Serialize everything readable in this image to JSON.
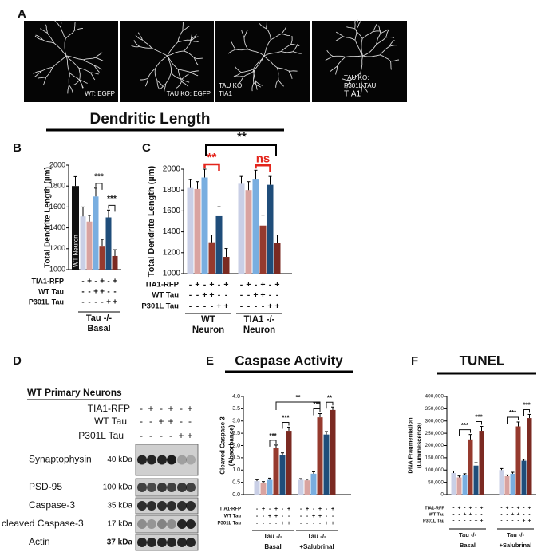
{
  "panel_labels": {
    "a": "A",
    "b": "B",
    "c": "C",
    "d": "D",
    "e": "E",
    "f": "F"
  },
  "panel_a": {
    "captions": [
      [
        "WT: EGFP"
      ],
      [
        "TAU KO: EGFP"
      ],
      [
        "TAU KO:",
        "TIA1"
      ],
      [
        "TAU KO:",
        "P301L TAU",
        "TIA1"
      ]
    ]
  },
  "header": {
    "title": "Dendritic Length",
    "significance": "**"
  },
  "chart_data": [
    {
      "type": "bar",
      "ylabel": "Total Dendrite Length (µm)",
      "ylim": [
        1000,
        2000
      ],
      "yticks": [
        1000,
        1200,
        1400,
        1600,
        1800,
        2000
      ],
      "reference": {
        "label": "WT Neuron",
        "value": 1800,
        "error": 90,
        "color": "#111111"
      },
      "groups": [
        [
          "Tau -/-",
          "Basal"
        ]
      ],
      "series": [
        {
          "color": "#c9cfe6",
          "values": [
            1510
          ],
          "errors": [
            90
          ]
        },
        {
          "color": "#d9a3a0",
          "values": [
            1460
          ],
          "errors": [
            60
          ]
        },
        {
          "color": "#79aee0",
          "values": [
            1700
          ],
          "errors": [
            80
          ]
        },
        {
          "color": "#963a2e",
          "values": [
            1220
          ],
          "errors": [
            70
          ]
        },
        {
          "color": "#1f4d7a",
          "values": [
            1500
          ],
          "errors": [
            70
          ]
        },
        {
          "color": "#7b2a22",
          "values": [
            1130
          ],
          "errors": [
            60
          ]
        }
      ],
      "conditions": [
        {
          "label": "TIA1-RFP",
          "signs": [
            "-",
            "+",
            "-",
            "+",
            "-",
            "+"
          ]
        },
        {
          "label": "WT Tau",
          "signs": [
            "-",
            "-",
            "+",
            "+",
            "-",
            "-"
          ]
        },
        {
          "label": "P301L Tau",
          "signs": [
            "-",
            "-",
            "-",
            "-",
            "+",
            "+"
          ]
        }
      ],
      "annotations": [
        {
          "text": "***",
          "color": "#111111"
        },
        {
          "text": "***",
          "color": "#111111"
        }
      ]
    },
    {
      "type": "bar",
      "ylabel": "Total Dendrite Length (µm)",
      "ylim": [
        1000,
        2000
      ],
      "yticks": [
        1000,
        1200,
        1400,
        1600,
        1800,
        2000
      ],
      "groups": [
        [
          "WT",
          "Neuron"
        ],
        [
          "TIA1 -/-",
          "Neuron"
        ]
      ],
      "series": [
        {
          "color": "#c9cfe6",
          "values": [
            1820,
            1860
          ],
          "errors": [
            80,
            70
          ]
        },
        {
          "color": "#d9a3a0",
          "values": [
            1810,
            1800
          ],
          "errors": [
            70,
            80
          ]
        },
        {
          "color": "#79aee0",
          "values": [
            1920,
            1900
          ],
          "errors": [
            80,
            90
          ]
        },
        {
          "color": "#963a2e",
          "values": [
            1300,
            1460
          ],
          "errors": [
            70,
            100
          ]
        },
        {
          "color": "#1f4d7a",
          "values": [
            1550,
            1850
          ],
          "errors": [
            90,
            80
          ]
        },
        {
          "color": "#7b2a22",
          "values": [
            1160,
            1290
          ],
          "errors": [
            80,
            80
          ]
        }
      ],
      "conditions": [
        {
          "label": "TIA1-RFP",
          "signs": [
            "-",
            "+",
            "-",
            "+",
            "-",
            "+"
          ]
        },
        {
          "label": "WT Tau",
          "signs": [
            "-",
            "-",
            "+",
            "+",
            "-",
            "-"
          ]
        },
        {
          "label": "P301L Tau",
          "signs": [
            "-",
            "-",
            "-",
            "-",
            "+",
            "+"
          ]
        }
      ],
      "annotations": [
        {
          "text": "**",
          "color": "#e3241b"
        },
        {
          "text": "ns",
          "color": "#e3241b"
        }
      ]
    },
    {
      "type": "bar",
      "title": "Caspase Activity",
      "ylabel": [
        "Cleaved Caspase 3",
        "(Absorbance)"
      ],
      "ylim": [
        0,
        4
      ],
      "yticks": [
        {
          "value": 0,
          "label": "0.0"
        },
        0.5,
        {
          "value": 1,
          "label": "1.0"
        },
        1.5,
        {
          "value": 2,
          "label": "2.0"
        },
        2.5,
        {
          "value": 3,
          "label": "3.0"
        },
        3.5,
        {
          "value": 4,
          "label": "4.0"
        }
      ],
      "groups": [
        [
          "Tau -/-",
          "Basal"
        ],
        [
          "Tau -/-",
          "+Salubrinal"
        ]
      ],
      "series": [
        {
          "color": "#c9cfe6",
          "values": [
            0.55,
            0.6
          ],
          "errors": [
            0.06,
            0.05
          ]
        },
        {
          "color": "#d9a3a0",
          "values": [
            0.48,
            0.58
          ],
          "errors": [
            0.05,
            0.05
          ]
        },
        {
          "color": "#79aee0",
          "values": [
            0.6,
            0.85
          ],
          "errors": [
            0.07,
            0.08
          ]
        },
        {
          "color": "#963a2e",
          "values": [
            1.9,
            3.15
          ],
          "errors": [
            0.12,
            0.15
          ]
        },
        {
          "color": "#1f4d7a",
          "values": [
            1.6,
            2.45
          ],
          "errors": [
            0.1,
            0.12
          ]
        },
        {
          "color": "#7b2a22",
          "values": [
            2.6,
            3.45
          ],
          "errors": [
            0.15,
            0.12
          ]
        }
      ],
      "conditions": [
        {
          "label": "TIA1-RFP",
          "signs": [
            "-",
            "+",
            "-",
            "+",
            "-",
            "+"
          ]
        },
        {
          "label": "WT Tau",
          "signs": [
            "-",
            "-",
            "+",
            "+",
            "-",
            "-"
          ]
        },
        {
          "label": "P301L Tau",
          "signs": [
            "-",
            "-",
            "-",
            "-",
            "+",
            "+"
          ]
        }
      ],
      "annotations": [
        {
          "text": "***",
          "color": "#111111"
        },
        {
          "text": "***",
          "color": "#111111"
        },
        {
          "text": "***",
          "color": "#111111"
        },
        {
          "text": "**",
          "color": "#111111"
        },
        {
          "text": "**",
          "color": "#111111"
        }
      ]
    },
    {
      "type": "bar",
      "title": "TUNEL",
      "ylabel": [
        "DNA Fragmentation",
        "(Luminescence)"
      ],
      "ylim": [
        0,
        400000
      ],
      "yticks": [
        0,
        {
          "value": 50000,
          "label": "50,000"
        },
        {
          "value": 100000,
          "label": "100,000"
        },
        {
          "value": 150000,
          "label": "150,000"
        },
        {
          "value": 200000,
          "label": "200,000"
        },
        {
          "value": 250000,
          "label": "250,000"
        },
        {
          "value": 300000,
          "label": "300,000"
        },
        {
          "value": 350000,
          "label": "350,000"
        },
        {
          "value": 400000,
          "label": "400,000"
        }
      ],
      "groups": [
        [
          "Tau -/-",
          "Basal"
        ],
        [
          "Tau -/-",
          "+Salubrinal"
        ]
      ],
      "series": [
        {
          "color": "#c9cfe6",
          "values": [
            88000,
            100000
          ],
          "errors": [
            8000,
            6000
          ]
        },
        {
          "color": "#d9a3a0",
          "values": [
            70000,
            75000
          ],
          "errors": [
            6000,
            5000
          ]
        },
        {
          "color": "#79aee0",
          "values": [
            78000,
            85000
          ],
          "errors": [
            7000,
            6000
          ]
        },
        {
          "color": "#963a2e",
          "values": [
            225000,
            278000
          ],
          "errors": [
            20000,
            18000
          ]
        },
        {
          "color": "#1f4d7a",
          "values": [
            118000,
            138000
          ],
          "errors": [
            12000,
            6000
          ]
        },
        {
          "color": "#7b2a22",
          "values": [
            260000,
            312000
          ],
          "errors": [
            18000,
            15000
          ]
        }
      ],
      "conditions": [
        {
          "label": "TIA1-RFP",
          "signs": [
            "-",
            "+",
            "-",
            "+",
            "-",
            "+"
          ]
        },
        {
          "label": "WT Tau",
          "signs": [
            "-",
            "-",
            "+",
            "+",
            "-",
            "-"
          ]
        },
        {
          "label": "P301L Tau",
          "signs": [
            "-",
            "-",
            "-",
            "-",
            "+",
            "+"
          ]
        }
      ],
      "annotations": [
        {
          "text": "***",
          "color": "#111111"
        },
        {
          "text": "***",
          "color": "#111111"
        },
        {
          "text": "***",
          "color": "#111111"
        },
        {
          "text": "***",
          "color": "#111111"
        }
      ]
    }
  ],
  "panel_d": {
    "title": "WT Primary Neurons",
    "conditions": [
      {
        "label": "TIA1-RFP",
        "signs": [
          "-",
          "+",
          "-",
          "+",
          "-",
          "+"
        ]
      },
      {
        "label": "WT Tau",
        "signs": [
          "-",
          "-",
          "+",
          "+",
          "-",
          "-"
        ]
      },
      {
        "label": "P301L Tau",
        "signs": [
          "-",
          "-",
          "-",
          "-",
          "+",
          "+"
        ]
      }
    ],
    "bands": [
      {
        "name": "Synaptophysin",
        "weight": "40 kDa"
      },
      {
        "name": "PSD-95",
        "weight": "100 kDa"
      },
      {
        "name": "Caspase-3",
        "weight": "35 kDa"
      },
      {
        "name": "cleaved Caspase-3",
        "weight": "17 kDa"
      },
      {
        "name": "Actin",
        "weight": "37 kDa"
      }
    ]
  }
}
